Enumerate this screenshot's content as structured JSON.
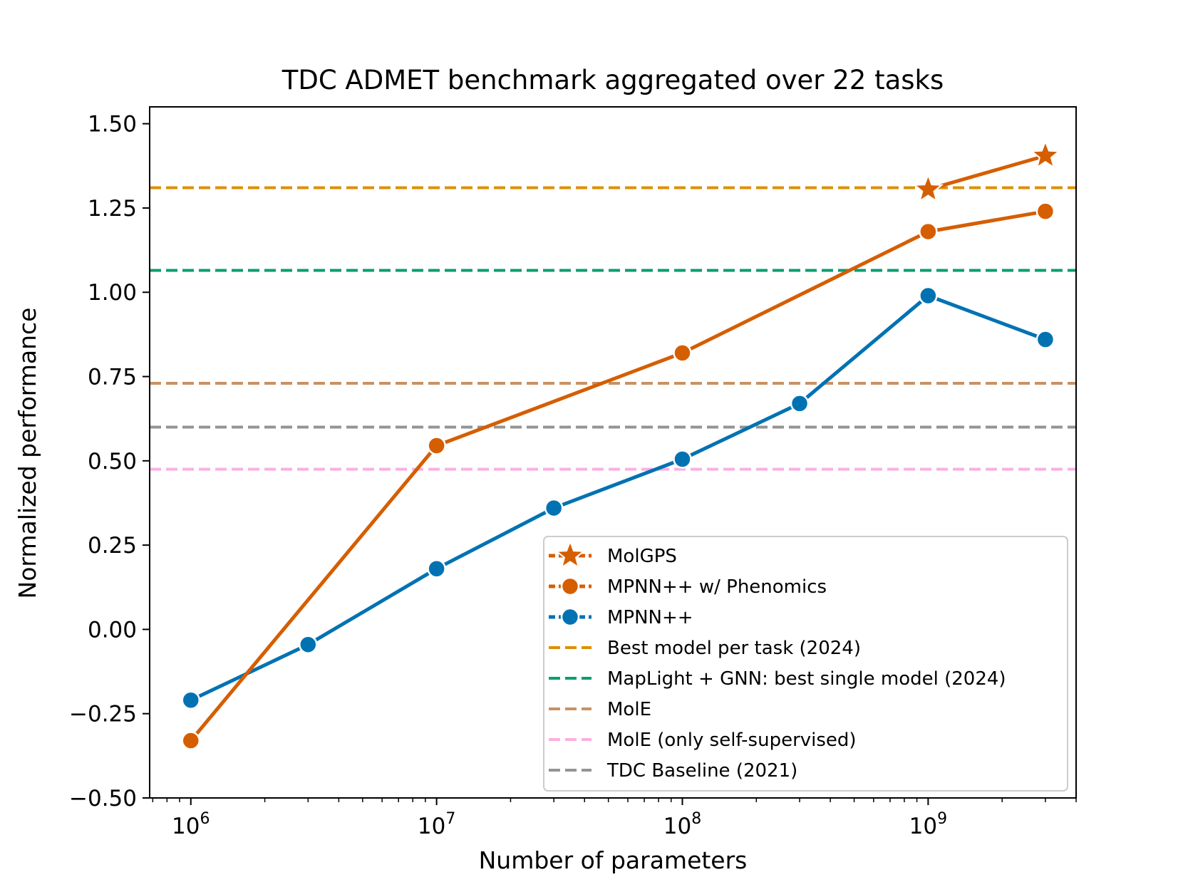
{
  "chart_data": {
    "type": "line",
    "title": "TDC ADMET benchmark aggregated over 22 tasks",
    "xlabel": "Number of parameters",
    "ylabel": "Normalized performance",
    "xscale": "log",
    "xlim": [
      680000,
      4000000000
    ],
    "ylim": [
      -0.5,
      1.55
    ],
    "x_ticks": [
      {
        "value": 1000000,
        "base": "10",
        "exp": "6"
      },
      {
        "value": 10000000,
        "base": "10",
        "exp": "7"
      },
      {
        "value": 100000000,
        "base": "10",
        "exp": "8"
      },
      {
        "value": 1000000000,
        "base": "10",
        "exp": "9"
      }
    ],
    "y_ticks": [
      {
        "value": -0.5,
        "label": "−0.50"
      },
      {
        "value": -0.25,
        "label": "−0.25"
      },
      {
        "value": 0.0,
        "label": "0.00"
      },
      {
        "value": 0.25,
        "label": "0.25"
      },
      {
        "value": 0.5,
        "label": "0.50"
      },
      {
        "value": 0.75,
        "label": "0.75"
      },
      {
        "value": 1.0,
        "label": "1.00"
      },
      {
        "value": 1.25,
        "label": "1.25"
      },
      {
        "value": 1.5,
        "label": "1.50"
      }
    ],
    "grid": false,
    "legend_position": "lower-right",
    "series": [
      {
        "name": "MolGPS",
        "color": "#d55e00",
        "marker": "star",
        "x": [
          1000000000,
          3000000000
        ],
        "y": [
          1.305,
          1.405
        ]
      },
      {
        "name": "MPNN++ w/ Phenomics",
        "color": "#d55e00",
        "marker": "circle",
        "x": [
          1000000,
          10000000,
          100000000,
          1000000000,
          3000000000
        ],
        "y": [
          -0.33,
          0.545,
          0.82,
          1.18,
          1.24
        ]
      },
      {
        "name": "MPNN++",
        "color": "#0072b2",
        "marker": "circle",
        "x": [
          1000000,
          3000000,
          10000000,
          30000000,
          100000000,
          300000000,
          1000000000,
          3000000000
        ],
        "y": [
          -0.21,
          -0.045,
          0.18,
          0.36,
          0.505,
          0.67,
          0.99,
          0.86
        ]
      }
    ],
    "reference_lines": [
      {
        "name": "Best model per task (2024)",
        "color": "#de8f05",
        "y": 1.31
      },
      {
        "name": "MapLight + GNN: best single model (2024)",
        "color": "#029e73",
        "y": 1.065
      },
      {
        "name": "MolE",
        "color": "#ca9161",
        "y": 0.73
      },
      {
        "name": "MolE (only self-supervised)",
        "color": "#fbafe4",
        "y": 0.475
      },
      {
        "name": "TDC Baseline (2021)",
        "color": "#949494",
        "y": 0.6
      }
    ]
  }
}
